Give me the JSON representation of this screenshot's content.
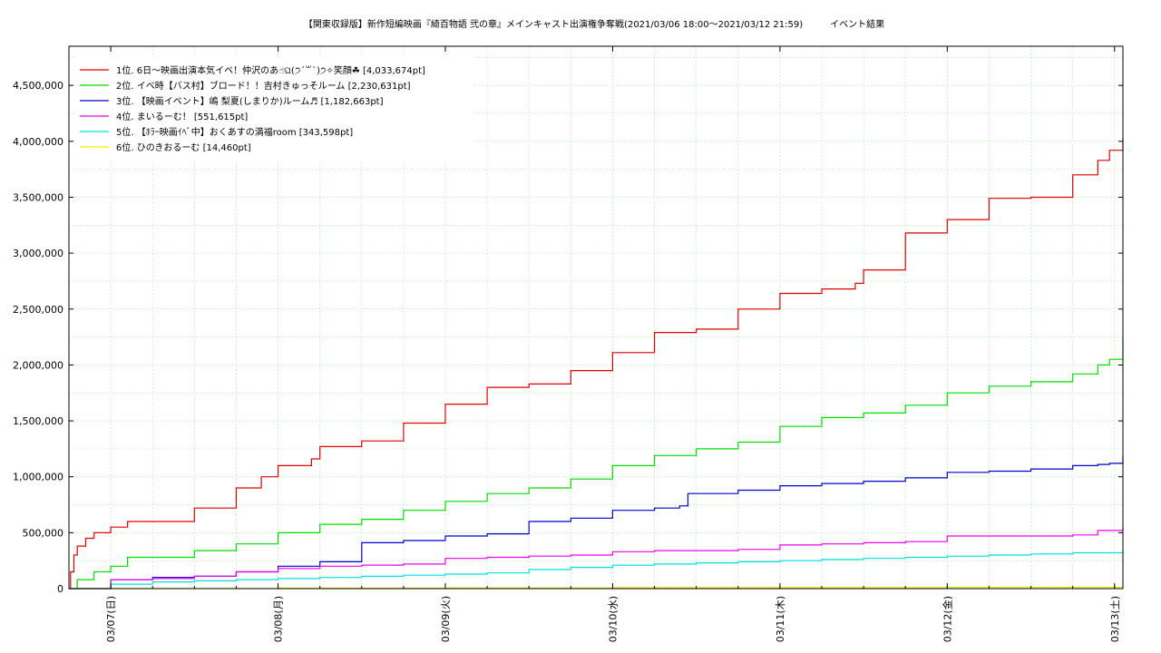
{
  "chart_data": {
    "type": "line",
    "title": "【関東収録版】新作短編映画『綺百物語 弐の章』メインキャスト出演権争奪戦(2021/03/06 18:00～2021/03/12 21:59)　　　イベント結果",
    "ylim": [
      0,
      4850000
    ],
    "yticks": [
      0,
      500000,
      1000000,
      1500000,
      2000000,
      2500000,
      3000000,
      3500000,
      4000000,
      4500000
    ],
    "ytick_labels": [
      "0",
      "500,000",
      "1,000,000",
      "1,500,000",
      "2,000,000",
      "2,500,000",
      "3,000,000",
      "3,500,000",
      "4,000,000",
      "4,500,000"
    ],
    "xlim": [
      -0.25,
      6.05
    ],
    "xticks": [
      0,
      1,
      2,
      3,
      4,
      5,
      6
    ],
    "xtick_labels": [
      "03/07(日)",
      "03/08(月)",
      "03/09(火)",
      "03/10(水)",
      "03/11(木)",
      "03/12(金)",
      "03/13(土)"
    ],
    "grid": true,
    "legend_position": "top-left",
    "series": [
      {
        "name": "1位. 6日〜映画出演本気イベ！仲沢のあ☝ଘ(੭ˊ꒳ˋ)੭✧笑顔☘ [4,033,674pt]",
        "color": "#e00000",
        "x": [
          -0.25,
          -0.24,
          -0.22,
          -0.2,
          -0.15,
          -0.1,
          0,
          0.1,
          0.25,
          0.5,
          0.75,
          0.9,
          1.0,
          1.2,
          1.25,
          1.5,
          1.75,
          2.0,
          2.25,
          2.5,
          2.75,
          3.0,
          3.25,
          3.5,
          3.75,
          4.0,
          4.25,
          4.45,
          4.5,
          4.75,
          5.0,
          5.25,
          5.5,
          5.75,
          5.9,
          5.97,
          6.05
        ],
        "y": [
          0,
          150000,
          300000,
          380000,
          450000,
          500000,
          550000,
          600000,
          600000,
          720000,
          900000,
          1000000,
          1100000,
          1160000,
          1270000,
          1320000,
          1480000,
          1650000,
          1800000,
          1830000,
          1950000,
          2110000,
          2290000,
          2320000,
          2500000,
          2640000,
          2680000,
          2730000,
          2850000,
          3180000,
          3300000,
          3490000,
          3500000,
          3700000,
          3830000,
          3920000,
          4033674
        ]
      },
      {
        "name": "2位. イベ時【バス村】ブロード！！吉村きゅっそルーム [2,230,631pt]",
        "color": "#00dd00",
        "x": [
          -0.25,
          -0.2,
          -0.1,
          0,
          0.1,
          0.25,
          0.5,
          0.75,
          1.0,
          1.25,
          1.5,
          1.75,
          2.0,
          2.25,
          2.5,
          2.75,
          3.0,
          3.25,
          3.5,
          3.75,
          4.0,
          4.25,
          4.5,
          4.75,
          5.0,
          5.25,
          5.5,
          5.75,
          5.9,
          5.97,
          6.05
        ],
        "y": [
          0,
          80000,
          150000,
          200000,
          280000,
          280000,
          340000,
          400000,
          500000,
          575000,
          620000,
          700000,
          780000,
          850000,
          900000,
          980000,
          1100000,
          1190000,
          1250000,
          1310000,
          1450000,
          1530000,
          1570000,
          1640000,
          1750000,
          1810000,
          1850000,
          1920000,
          2000000,
          2050000,
          2230631
        ]
      },
      {
        "name": "3位. 【映画イベント】嶋 梨夏(しまりか)ルーム♬ [1,182,663pt]",
        "color": "#0000cc",
        "x": [
          -0.25,
          0,
          0.25,
          0.5,
          0.75,
          1.0,
          1.25,
          1.5,
          1.75,
          2.0,
          2.25,
          2.5,
          2.75,
          3.0,
          3.25,
          3.4,
          3.45,
          3.75,
          4.0,
          4.25,
          4.5,
          4.75,
          5.0,
          5.25,
          5.5,
          5.75,
          5.9,
          5.97,
          6.05
        ],
        "y": [
          0,
          80000,
          100000,
          110000,
          150000,
          200000,
          240000,
          410000,
          430000,
          470000,
          490000,
          600000,
          630000,
          700000,
          720000,
          740000,
          850000,
          880000,
          920000,
          940000,
          960000,
          990000,
          1040000,
          1050000,
          1070000,
          1100000,
          1110000,
          1120000,
          1182663
        ]
      },
      {
        "name": "4位. まいるーむ！ [551,615pt]",
        "color": "#ee00ee",
        "x": [
          -0.25,
          0,
          0.25,
          0.5,
          0.75,
          1.0,
          1.25,
          1.5,
          1.75,
          2.0,
          2.25,
          2.5,
          2.75,
          3.0,
          3.25,
          3.5,
          3.75,
          4.0,
          4.25,
          4.5,
          4.75,
          5.0,
          5.25,
          5.5,
          5.75,
          5.9,
          6.05
        ],
        "y": [
          0,
          80000,
          90000,
          110000,
          150000,
          180000,
          200000,
          210000,
          220000,
          270000,
          280000,
          290000,
          300000,
          330000,
          340000,
          340000,
          350000,
          390000,
          400000,
          410000,
          420000,
          470000,
          470000,
          470000,
          480000,
          520000,
          551615
        ]
      },
      {
        "name": "5位. 【ﾎﾗｰ映画ｲﾍﾞ中】おくあすの満福room [343,598pt]",
        "color": "#00e0e0",
        "x": [
          -0.25,
          0,
          0.25,
          0.5,
          0.75,
          1.0,
          1.25,
          1.5,
          1.75,
          2.0,
          2.25,
          2.5,
          2.75,
          3.0,
          3.25,
          3.5,
          3.75,
          4.0,
          4.25,
          4.5,
          4.75,
          5.0,
          5.25,
          5.5,
          5.75,
          6.05
        ],
        "y": [
          0,
          40000,
          60000,
          70000,
          80000,
          90000,
          100000,
          110000,
          120000,
          130000,
          140000,
          170000,
          190000,
          210000,
          220000,
          230000,
          240000,
          250000,
          260000,
          270000,
          280000,
          290000,
          300000,
          310000,
          320000,
          343598
        ]
      },
      {
        "name": "6位. ひのきおるーむ [14,460pt]",
        "color": "#eeee00",
        "x": [
          -0.25,
          0,
          1.0,
          2.0,
          3.0,
          4.0,
          5.0,
          6.05
        ],
        "y": [
          0,
          2000,
          4000,
          6000,
          8000,
          10000,
          12000,
          14460
        ]
      }
    ]
  }
}
